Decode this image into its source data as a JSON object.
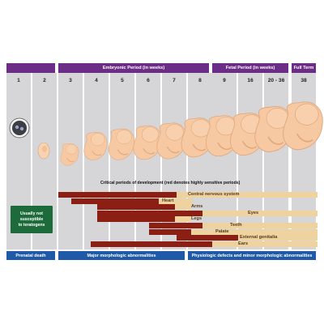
{
  "header": {
    "embryonic": "Embryonic Period (in weeks)",
    "fetal": "Fetal Period (in weeks)",
    "full_term": "Full Term"
  },
  "weeks": [
    "1",
    "2",
    "3",
    "4",
    "5",
    "6",
    "7",
    "8",
    "9",
    "16",
    "20 - 36",
    "38"
  ],
  "critical_title": "Critical periods of development (red denotes highly sensitive periods)",
  "note": [
    "Usually not",
    "susceptible",
    "to teratogens"
  ],
  "organs": [
    {
      "label": "Central nervous system"
    },
    {
      "label": "Heart"
    },
    {
      "label": "Arms"
    },
    {
      "label": "Eyes"
    },
    {
      "label": "Legs"
    },
    {
      "label": "Teeth"
    },
    {
      "label": "Palate"
    },
    {
      "label": "External genitalia"
    },
    {
      "label": "Ears"
    }
  ],
  "footer": {
    "prenatal": "Prenatal death",
    "major": "Major morphologic abnormalities",
    "minor": "Physiologic defects and minor morphologic abnormalities"
  },
  "colors": {
    "header": "#6b2d86",
    "highly_sensitive": "#8b1f14",
    "less_sensitive": "#efd39e",
    "footer": "#1e5aa8",
    "note": "#1d6b3a"
  }
}
